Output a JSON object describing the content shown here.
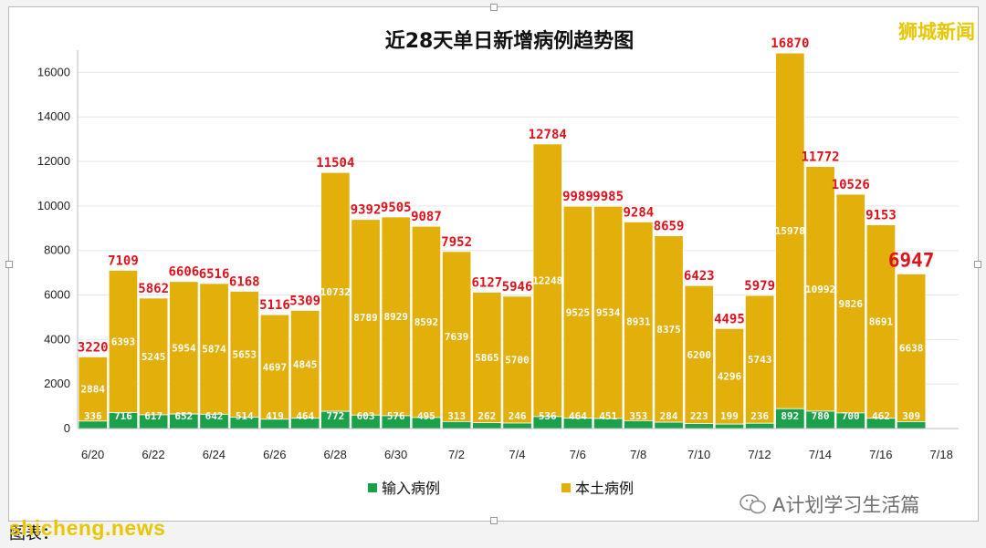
{
  "watermark": "狮城新闻",
  "wechat_label": "A计划学习生活篇",
  "footer_source": "图表：",
  "footer_site": "shicheng.news",
  "colors": {
    "imported": "#1ba14a",
    "local": "#e3b00b",
    "total_label": "#e0121b"
  },
  "chart_data": {
    "type": "bar",
    "stacked": true,
    "title": "近28天单日新增病例趋势图",
    "xlabel": "",
    "ylabel": "",
    "ylim": [
      0,
      17000
    ],
    "yticks": [
      0,
      2000,
      4000,
      6000,
      8000,
      10000,
      12000,
      14000,
      16000
    ],
    "x_tick_labels": [
      "6/20",
      "6/22",
      "6/24",
      "6/26",
      "6/28",
      "6/30",
      "7/2",
      "7/4",
      "7/6",
      "7/8",
      "7/10",
      "7/12",
      "7/14",
      "7/16",
      "7/18"
    ],
    "categories": [
      "6/20",
      "6/21",
      "6/22",
      "6/23",
      "6/24",
      "6/25",
      "6/26",
      "6/27",
      "6/28",
      "6/29",
      "6/30",
      "7/1",
      "7/2",
      "7/3",
      "7/4",
      "7/5",
      "7/6",
      "7/7",
      "7/8",
      "7/9",
      "7/10",
      "7/11",
      "7/12",
      "7/13",
      "7/14",
      "7/15",
      "7/16",
      "7/17"
    ],
    "series": [
      {
        "name": "输入病例",
        "values": [
          336,
          716,
          617,
          652,
          642,
          514,
          419,
          464,
          772,
          603,
          576,
          495,
          313,
          262,
          246,
          536,
          464,
          451,
          353,
          284,
          223,
          199,
          236,
          892,
          780,
          700,
          462,
          309
        ]
      },
      {
        "name": "本土病例",
        "values": [
          2884,
          6393,
          5245,
          5954,
          5874,
          5653,
          4697,
          4845,
          10732,
          8789,
          8929,
          8592,
          7639,
          5865,
          5700,
          12248,
          9525,
          9534,
          8931,
          8375,
          6200,
          4296,
          5743,
          15978,
          10992,
          9826,
          8691,
          6638
        ]
      }
    ],
    "totals": [
      3220,
      7109,
      5862,
      6606,
      6516,
      6168,
      5116,
      5309,
      11504,
      9392,
      9505,
      9087,
      7952,
      6127,
      5946,
      12784,
      9989,
      9985,
      9284,
      8659,
      6423,
      4495,
      5979,
      16870,
      11772,
      10526,
      9153,
      6947
    ],
    "grid": true,
    "legend_position": "bottom"
  }
}
